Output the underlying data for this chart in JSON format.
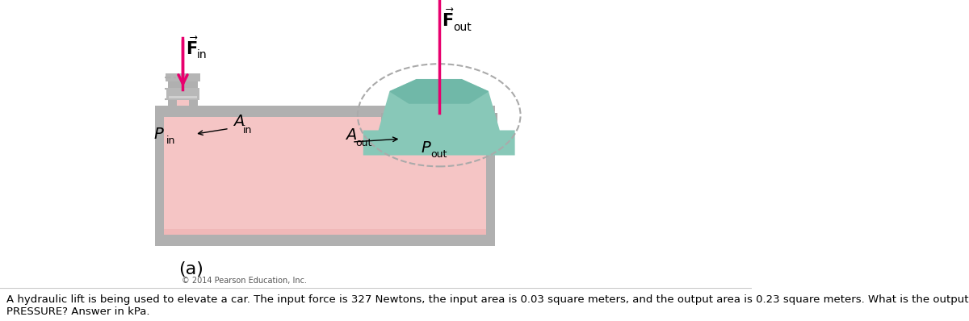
{
  "label_a": "(a)",
  "copyright": "© 2014 Pearson Education, Inc.",
  "question_text": "A hydraulic lift is being used to elevate a car. The input force is 327 Newtons, the input area is 0.03 square meters, and the output area is 0.23 square meters. What is the output\nPRESSURE? Answer in kPa.",
  "fluid_color": "#f5c5c5",
  "fluid_light": "#fde8e8",
  "wall_outer": "#b0b0b0",
  "wall_mid": "#c8c8c8",
  "wall_inner": "#d8d8d8",
  "arrow_color": "#e8006e",
  "piston_color": "#b8b8b8",
  "car_body_color": "#88c8b8",
  "car_outline": "#559988",
  "platform_color": "#aaaaaa",
  "platform_dark": "#888888",
  "dashed_color": "#aaaaaa"
}
